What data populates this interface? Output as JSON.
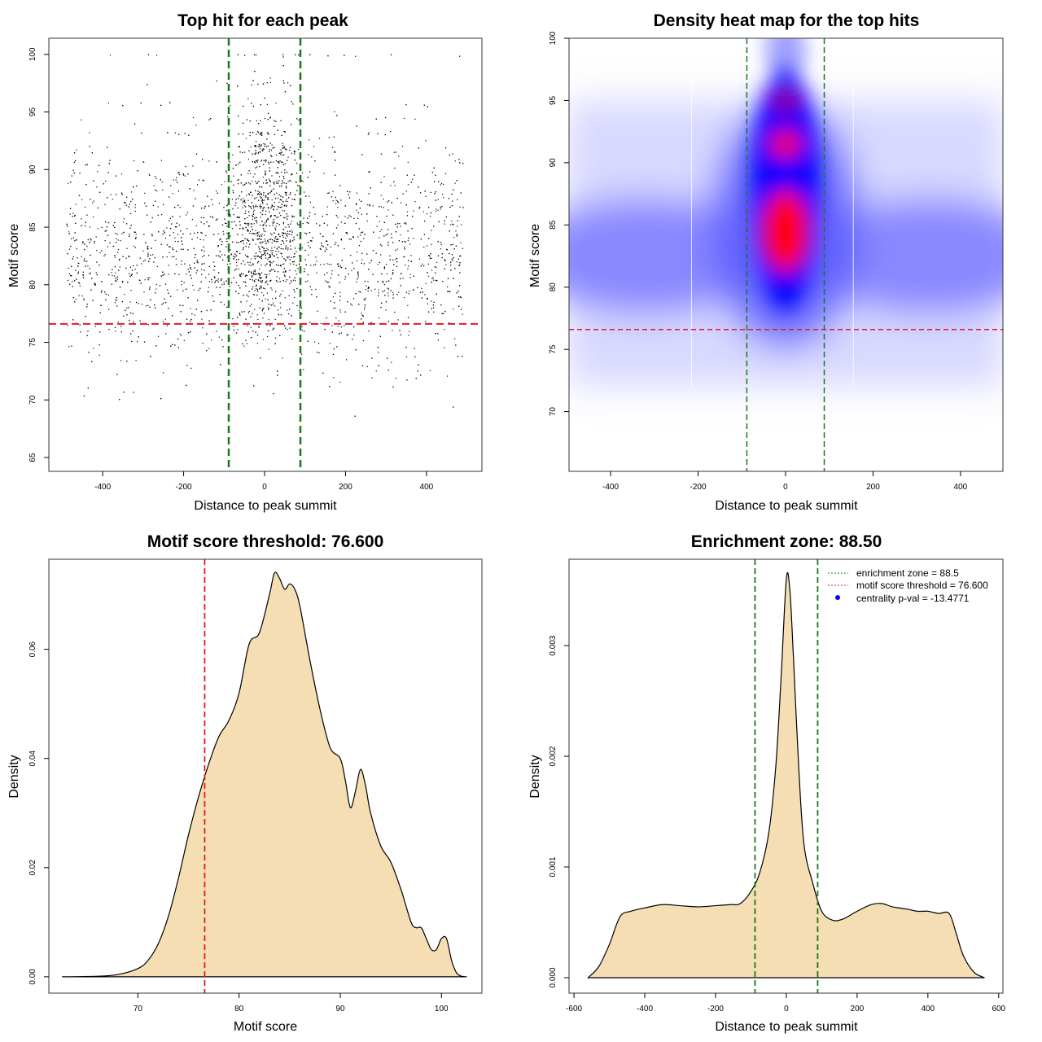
{
  "colors": {
    "threshold": "#e31a1c",
    "zone": "#1a7a1a",
    "fill": "#f5deb3",
    "heat_low": "#0000ff",
    "heat_high": "#ff0000",
    "pval_dot": "#0000ff"
  },
  "chart_data": [
    {
      "type": "scatter",
      "title": "Top hit for each peak",
      "xlabel": "Distance to peak summit",
      "ylabel": "Motif score",
      "xlim": [
        -533,
        537
      ],
      "ylim": [
        63.8,
        101.4
      ],
      "xticks": [
        -400,
        -200,
        0,
        200,
        400
      ],
      "yticks": [
        65,
        70,
        75,
        80,
        85,
        90,
        95,
        100
      ],
      "vlines": [
        -88.5,
        88.5
      ],
      "hline": 76.6,
      "points_summary": {
        "approx_count": 4000,
        "x_range": [
          -500,
          500
        ],
        "y_range": [
          67.5,
          100
        ],
        "concentration": "center x=0, y~80-96"
      }
    },
    {
      "type": "heatmap",
      "title": "Density heat map for the top hits",
      "xlabel": "Distance to peak summit",
      "ylabel": "Motif score",
      "xlim": [
        -495,
        497
      ],
      "ylim": [
        65.2,
        100
      ],
      "xticks": [
        -400,
        -200,
        0,
        200,
        400
      ],
      "yticks": [
        70,
        75,
        80,
        85,
        90,
        95,
        100
      ],
      "vlines": [
        -88.5,
        88.5
      ],
      "hline": 76.6,
      "hotspots": [
        {
          "x": 0,
          "y": 84.5,
          "level": "high"
        },
        {
          "x": 0,
          "y": 91.5,
          "level": "high"
        },
        {
          "x": 0,
          "y": 95,
          "level": "medium"
        }
      ]
    },
    {
      "type": "area",
      "title": "Motif score threshold: 76.600",
      "xlabel": "Motif score",
      "ylabel": "Density",
      "xlim": [
        61.2,
        104
      ],
      "ylim": [
        -0.003,
        0.0765
      ],
      "xticks": [
        70,
        80,
        90,
        100
      ],
      "yticks": [
        0.0,
        0.02,
        0.04,
        0.06
      ],
      "ytick_labels": [
        "0.00",
        "0.02",
        "0.04",
        "0.06"
      ],
      "vlines": [
        76.6
      ],
      "x": [
        62.5,
        66,
        68,
        70,
        71,
        72,
        73,
        74,
        75,
        76,
        77,
        78,
        79,
        80,
        81,
        82,
        83,
        83.5,
        84,
        84.5,
        85,
        85.5,
        86,
        87,
        88,
        89,
        90,
        90.5,
        91,
        91.5,
        92,
        92.5,
        93,
        94,
        95,
        96,
        97,
        97.5,
        98,
        98.5,
        99,
        99.5,
        100,
        100.5,
        101,
        101.5,
        102,
        102.5
      ],
      "y": [
        0,
        0.0001,
        0.0004,
        0.0015,
        0.003,
        0.006,
        0.011,
        0.018,
        0.026,
        0.033,
        0.039,
        0.044,
        0.047,
        0.052,
        0.061,
        0.063,
        0.07,
        0.074,
        0.073,
        0.071,
        0.072,
        0.071,
        0.068,
        0.058,
        0.049,
        0.042,
        0.04,
        0.036,
        0.031,
        0.034,
        0.038,
        0.035,
        0.03,
        0.024,
        0.021,
        0.016,
        0.01,
        0.009,
        0.009,
        0.007,
        0.005,
        0.005,
        0.007,
        0.007,
        0.003,
        0.0007,
        0.0001,
        0
      ]
    },
    {
      "type": "area",
      "title": "Enrichment zone: 88.50",
      "xlabel": "Distance to peak summit",
      "ylabel": "Density",
      "xlim": [
        -614,
        612
      ],
      "ylim": [
        -0.00014,
        0.00378
      ],
      "xticks": [
        -600,
        -400,
        -200,
        0,
        200,
        400,
        600
      ],
      "yticks": [
        0.0,
        0.001,
        0.002,
        0.003
      ],
      "ytick_labels": [
        "0.000",
        "0.001",
        "0.002",
        "0.003"
      ],
      "vlines": [
        -88.5,
        88.5
      ],
      "x": [
        -560,
        -530,
        -500,
        -470,
        -440,
        -400,
        -350,
        -300,
        -250,
        -200,
        -160,
        -130,
        -100,
        -75,
        -50,
        -30,
        -15,
        0,
        10,
        20,
        35,
        50,
        75,
        100,
        130,
        160,
        200,
        240,
        270,
        300,
        340,
        370,
        400,
        430,
        460,
        480,
        500,
        530,
        560
      ],
      "y": [
        0,
        0.0001,
        0.0003,
        0.00055,
        0.0006,
        0.00063,
        0.00066,
        0.00065,
        0.00064,
        0.00065,
        0.00066,
        0.00067,
        0.00078,
        0.00095,
        0.0013,
        0.0019,
        0.0027,
        0.0036,
        0.0035,
        0.0029,
        0.0019,
        0.0012,
        0.00085,
        0.0006,
        0.00052,
        0.00053,
        0.0006,
        0.00066,
        0.00067,
        0.00064,
        0.00062,
        0.0006,
        0.0006,
        0.00058,
        0.00058,
        0.0004,
        0.0002,
        5e-05,
        0
      ],
      "legend": {
        "placement": "top-right",
        "entries": [
          "enrichment zone = 88.5",
          "motif score threshold = 76.600",
          "centrality p-val = -13.4771"
        ]
      }
    }
  ]
}
